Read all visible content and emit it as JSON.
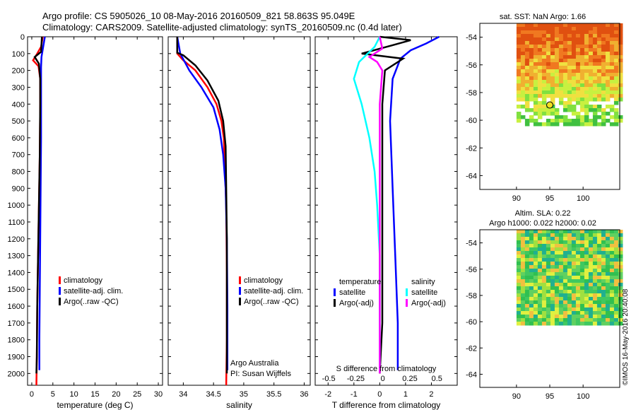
{
  "header": {
    "line1": "Argo profile: CS 5905026_10 08-May-2016 20160509_821 58.863S 95.049E",
    "line2": "Climatology: CARS2009. Satellite-adjusted climatology: synTS_20160509.nc (0.4d later)"
  },
  "colors": {
    "climatology": "#ff0000",
    "satellite": "#0000ff",
    "argo": "#000000",
    "satellite_s": "#00ffff",
    "argo_s": "#ff00ff"
  },
  "chart_data": [
    {
      "type": "line",
      "panel": "temperature",
      "xlabel": "temperature (deg C)",
      "xlim": [
        -1,
        31
      ],
      "xticks": [
        0,
        5,
        10,
        15,
        20,
        25,
        30
      ],
      "ylim": [
        2070,
        0
      ],
      "yticks": [
        0,
        100,
        200,
        300,
        400,
        500,
        600,
        700,
        800,
        900,
        1000,
        1100,
        1200,
        1300,
        1400,
        1500,
        1600,
        1700,
        1800,
        1900,
        2000
      ],
      "legend": [
        "climatology",
        "satellite-adj. clim.",
        "Argo(..raw -QC)"
      ],
      "series": [
        {
          "name": "climatology",
          "color": "#ff0000",
          "points": [
            [
              2.6,
              0
            ],
            [
              2.2,
              60
            ],
            [
              1.3,
              100
            ],
            [
              0.3,
              140
            ],
            [
              1.6,
              175
            ],
            [
              2.0,
              250
            ],
            [
              2.0,
              400
            ],
            [
              1.9,
              700
            ],
            [
              1.7,
              1000
            ],
            [
              1.5,
              1300
            ],
            [
              1.3,
              1600
            ],
            [
              1.2,
              1900
            ],
            [
              1.1,
              2070
            ]
          ]
        },
        {
          "name": "satellite-adj. clim.",
          "color": "#0000ff",
          "points": [
            [
              3.1,
              0
            ],
            [
              2.7,
              60
            ],
            [
              2.3,
              120
            ],
            [
              2.2,
              180
            ],
            [
              2.2,
              300
            ],
            [
              2.2,
              600
            ],
            [
              2.1,
              900
            ],
            [
              2.0,
              1200
            ],
            [
              1.9,
              1500
            ],
            [
              1.8,
              1800
            ],
            [
              1.8,
              1980
            ]
          ]
        },
        {
          "name": "Argo(..raw -QC)",
          "color": "#000000",
          "points": [
            [
              2.4,
              0
            ],
            [
              2.2,
              90
            ],
            [
              0.7,
              120
            ],
            [
              1.7,
              160
            ],
            [
              2.0,
              250
            ],
            [
              2.0,
              400
            ],
            [
              1.9,
              700
            ],
            [
              1.7,
              1000
            ],
            [
              1.5,
              1300
            ],
            [
              1.3,
              1600
            ],
            [
              1.2,
              1900
            ],
            [
              1.1,
              2000
            ]
          ]
        }
      ]
    },
    {
      "type": "line",
      "panel": "salinity",
      "xlabel": "salinity",
      "xlim": [
        33.75,
        36.1
      ],
      "xticks": [
        34,
        34.5,
        35,
        35.5,
        36
      ],
      "ylim": [
        2070,
        0
      ],
      "legend": [
        "climatology",
        "satellite-adj. clim.",
        "Argo(..raw -QC)"
      ],
      "annotations": [
        "Argo Australia",
        "PI: Susan Wijffels"
      ],
      "series": [
        {
          "name": "climatology",
          "color": "#ff0000",
          "points": [
            [
              33.9,
              0
            ],
            [
              33.9,
              100
            ],
            [
              34.0,
              140
            ],
            [
              34.2,
              200
            ],
            [
              34.4,
              300
            ],
            [
              34.55,
              400
            ],
            [
              34.63,
              500
            ],
            [
              34.67,
              600
            ],
            [
              34.69,
              800
            ],
            [
              34.71,
              1000
            ],
            [
              34.72,
              1400
            ],
            [
              34.72,
              1800
            ],
            [
              34.71,
              2070
            ]
          ]
        },
        {
          "name": "satellite-adj. clim.",
          "color": "#0000ff",
          "points": [
            [
              33.9,
              0
            ],
            [
              33.95,
              100
            ],
            [
              34.1,
              200
            ],
            [
              34.3,
              300
            ],
            [
              34.5,
              420
            ],
            [
              34.6,
              550
            ],
            [
              34.66,
              700
            ],
            [
              34.7,
              900
            ],
            [
              34.72,
              1200
            ],
            [
              34.73,
              1600
            ],
            [
              34.73,
              1980
            ]
          ]
        },
        {
          "name": "Argo(..raw -QC)",
          "color": "#000000",
          "points": [
            [
              33.9,
              0
            ],
            [
              33.9,
              95
            ],
            [
              34.0,
              110
            ],
            [
              34.2,
              170
            ],
            [
              34.4,
              260
            ],
            [
              34.58,
              380
            ],
            [
              34.66,
              500
            ],
            [
              34.7,
              650
            ],
            [
              34.71,
              900
            ],
            [
              34.72,
              1200
            ],
            [
              34.72,
              1600
            ],
            [
              34.72,
              2000
            ]
          ]
        }
      ]
    },
    {
      "type": "line",
      "panel": "difference",
      "xlabel": "T difference from climatology",
      "top_label": "S difference from climatology",
      "xlim": [
        -2.5,
        3.0
      ],
      "xticks": [
        -2,
        -1,
        0,
        1,
        2
      ],
      "sticks": [
        -0.5,
        -0.25,
        0,
        0.25,
        0.5
      ],
      "ylim": [
        2070,
        0
      ],
      "legend_t": [
        "temperature",
        "satellite",
        "Argo(-adj)"
      ],
      "legend_s": [
        "salinity",
        "satellite",
        "Argo(-adj)"
      ],
      "series": [
        {
          "name": "satellite",
          "kind": "temperature",
          "color": "#0000ff",
          "points": [
            [
              2.3,
              0
            ],
            [
              1.8,
              40
            ],
            [
              1.2,
              80
            ],
            [
              0.8,
              130
            ],
            [
              0.5,
              250
            ],
            [
              0.4,
              500
            ],
            [
              0.5,
              900
            ],
            [
              0.6,
              1300
            ],
            [
              0.7,
              1700
            ],
            [
              0.7,
              1980
            ]
          ]
        },
        {
          "name": "Argo(-adj)",
          "kind": "temperature",
          "color": "#000000",
          "points": [
            [
              0,
              0
            ],
            [
              1.2,
              20
            ],
            [
              0.5,
              50
            ],
            [
              -0.7,
              100
            ],
            [
              0.9,
              130
            ],
            [
              0.2,
              200
            ],
            [
              0.1,
              400
            ],
            [
              0.1,
              800
            ],
            [
              0.1,
              1300
            ],
            [
              0.1,
              1700
            ],
            [
              0.0,
              2000
            ]
          ]
        },
        {
          "name": "satellite",
          "kind": "salinity",
          "color": "#00ffff",
          "points": [
            [
              0,
              0
            ],
            [
              -0.2,
              60
            ],
            [
              -0.8,
              150
            ],
            [
              -1.0,
              250
            ],
            [
              -0.7,
              400
            ],
            [
              -0.4,
              600
            ],
            [
              -0.2,
              800
            ],
            [
              -0.1,
              1000
            ],
            [
              0.0,
              1300
            ],
            [
              0.0,
              1980
            ]
          ]
        },
        {
          "name": "Argo(-adj)",
          "kind": "salinity",
          "color": "#ff00ff",
          "points": [
            [
              0,
              0
            ],
            [
              0.1,
              70
            ],
            [
              -0.4,
              120
            ],
            [
              -0.1,
              150
            ],
            [
              0.1,
              200
            ],
            [
              0.0,
              400
            ],
            [
              0.0,
              800
            ],
            [
              0.0,
              1300
            ],
            [
              0.0,
              2000
            ]
          ]
        }
      ]
    }
  ],
  "map_top": {
    "title": "sat. SST: NaN Argo: 1.66",
    "xticks": [
      90,
      95,
      100
    ],
    "yticks": [
      -54,
      -56,
      -58,
      -60,
      -62,
      -64
    ],
    "xlim": [
      84.5,
      105.5
    ],
    "ylim": [
      -65,
      -53
    ],
    "marker": {
      "lon": 95.0,
      "lat": -58.9
    }
  },
  "map_bottom": {
    "title1": "Altim. SLA: 0.22",
    "title2": "Argo h1000: 0.022 h2000: 0.02",
    "xticks": [
      90,
      95,
      100
    ],
    "yticks": [
      -54,
      -56,
      -58,
      -60,
      -62,
      -64
    ],
    "xlim": [
      84.5,
      105.5
    ],
    "ylim": [
      -65,
      -53
    ]
  },
  "footer": "©IMOS 16-May-2016 20:40:08"
}
